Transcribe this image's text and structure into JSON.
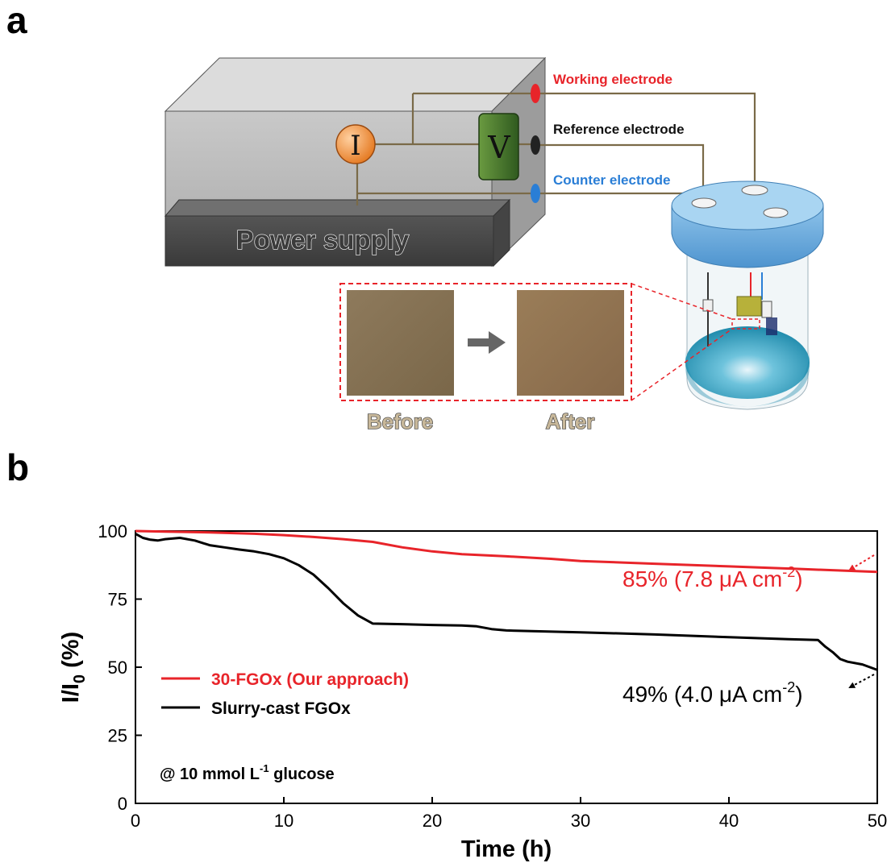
{
  "panels": {
    "a": "a",
    "b": "b"
  },
  "schematic": {
    "box_label": "Power supply",
    "current_symbol": "I",
    "voltage_symbol": "V",
    "electrodes": [
      {
        "label": "Working electrode",
        "color": "#e8242a"
      },
      {
        "label": "Reference electrode",
        "color": "#111111"
      },
      {
        "label": "Counter electrode",
        "color": "#2a7ed6"
      }
    ],
    "inset": {
      "before_label": "Before",
      "after_label": "After"
    }
  },
  "chart_data": {
    "type": "line",
    "xlabel": "Time (h)",
    "ylabel": "I/I",
    "ylabel_subscript": "0",
    "ylabel_suffix": " (%)",
    "xlim": [
      0,
      50
    ],
    "ylim": [
      0,
      100
    ],
    "xticks": [
      0,
      10,
      20,
      30,
      40,
      50
    ],
    "yticks": [
      0,
      25,
      50,
      75,
      100
    ],
    "grid": false,
    "legend_position": "lower-left",
    "condition_note": "@ 10 mmol L",
    "condition_superscript": "-1",
    "condition_suffix": " glucose",
    "series": [
      {
        "name": "30-FGOx (Our approach)",
        "color": "#e8242a",
        "x": [
          0,
          2,
          5,
          8,
          10,
          12,
          14,
          16,
          18,
          20,
          22,
          25,
          28,
          30,
          35,
          40,
          45,
          50
        ],
        "y": [
          100,
          99.8,
          99.5,
          99,
          98.5,
          97.8,
          97,
          96,
          94,
          92.5,
          91.5,
          90.7,
          89.8,
          89,
          88,
          87,
          86,
          85
        ],
        "end_label": "85% (7.8 μA cm",
        "end_label_sup": "-2",
        "end_label_tail": ")"
      },
      {
        "name": "Slurry-cast FGOx",
        "color": "#000000",
        "x": [
          0,
          0.5,
          1,
          1.5,
          2,
          3,
          4,
          5,
          6,
          7,
          8,
          9,
          10,
          11,
          12,
          13,
          14,
          15,
          16,
          18,
          20,
          22,
          23,
          24,
          25,
          30,
          35,
          40,
          44,
          46,
          46.5,
          47,
          47.5,
          48,
          49,
          50
        ],
        "y": [
          99,
          97.5,
          96.8,
          96.5,
          97,
          97.5,
          96.5,
          94.8,
          94,
          93.2,
          92.5,
          91.5,
          90,
          87.5,
          84,
          79,
          73.5,
          69,
          66,
          65.8,
          65.5,
          65.3,
          65,
          64,
          63.5,
          62.8,
          62,
          61,
          60.3,
          60,
          57.5,
          55.5,
          53,
          52,
          51,
          49
        ],
        "end_label": "49% (4.0 μA cm",
        "end_label_sup": "-2",
        "end_label_tail": ")"
      }
    ]
  }
}
